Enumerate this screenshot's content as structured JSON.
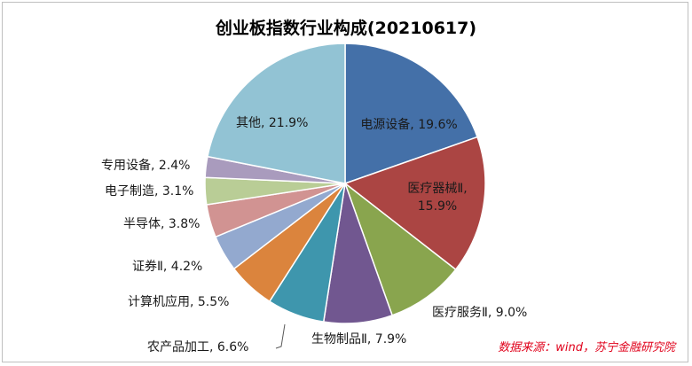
{
  "chart_data": {
    "type": "pie",
    "title": "创业板指数行业构成(20210617)",
    "slices": [
      {
        "label": "电源设备, 19.6%",
        "value": 19.6,
        "color": "#4470a8"
      },
      {
        "label": "医疗器械Ⅱ, 15.9%",
        "value": 15.9,
        "color": "#ab4543"
      },
      {
        "label": "医疗服务Ⅱ, 9.0%",
        "value": 9.0,
        "color": "#89a54e"
      },
      {
        "label": "生物制品Ⅱ, 7.9%",
        "value": 7.9,
        "color": "#715790"
      },
      {
        "label": "农产品加工, 6.6%",
        "value": 6.6,
        "color": "#3e96ad"
      },
      {
        "label": "计算机应用, 5.5%",
        "value": 5.5,
        "color": "#db843d"
      },
      {
        "label": "证券Ⅱ, 4.2%",
        "value": 4.2,
        "color": "#93a9cf"
      },
      {
        "label": "半导体, 3.8%",
        "value": 3.8,
        "color": "#d19392"
      },
      {
        "label": "电子制造, 3.1%",
        "value": 3.1,
        "color": "#b9cd96"
      },
      {
        "label": "专用设备, 2.4%",
        "value": 2.4,
        "color": "#a99bbd"
      },
      {
        "label": "其他, 21.9%",
        "value": 21.9,
        "color": "#92c3d4"
      }
    ]
  },
  "source_note": "数据来源：wind，苏宁金融研究院"
}
